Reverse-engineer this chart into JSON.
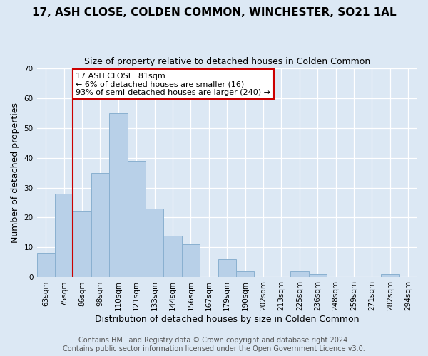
{
  "title": "17, ASH CLOSE, COLDEN COMMON, WINCHESTER, SO21 1AL",
  "subtitle": "Size of property relative to detached houses in Colden Common",
  "xlabel": "Distribution of detached houses by size in Colden Common",
  "ylabel": "Number of detached properties",
  "bin_labels": [
    "63sqm",
    "75sqm",
    "86sqm",
    "98sqm",
    "110sqm",
    "121sqm",
    "133sqm",
    "144sqm",
    "156sqm",
    "167sqm",
    "179sqm",
    "190sqm",
    "202sqm",
    "213sqm",
    "225sqm",
    "236sqm",
    "248sqm",
    "259sqm",
    "271sqm",
    "282sqm",
    "294sqm"
  ],
  "bin_values": [
    8,
    28,
    22,
    35,
    55,
    39,
    23,
    14,
    11,
    0,
    6,
    2,
    0,
    0,
    2,
    1,
    0,
    0,
    0,
    1,
    0
  ],
  "bar_color": "#b8d0e8",
  "bar_edge_color": "#8ab0d0",
  "bar_linewidth": 0.7,
  "vline_color": "#cc0000",
  "vline_x": 1.5,
  "ylim": [
    0,
    70
  ],
  "yticks": [
    0,
    10,
    20,
    30,
    40,
    50,
    60,
    70
  ],
  "annotation_text": "17 ASH CLOSE: 81sqm\n← 6% of detached houses are smaller (16)\n93% of semi-detached houses are larger (240) →",
  "annotation_box_facecolor": "#ffffff",
  "annotation_box_edgecolor": "#cc0000",
  "footer_line1": "Contains HM Land Registry data © Crown copyright and database right 2024.",
  "footer_line2": "Contains public sector information licensed under the Open Government Licence v3.0.",
  "background_color": "#dce8f4",
  "plot_bg_color": "#dce8f4",
  "grid_color": "#ffffff",
  "title_fontsize": 11,
  "subtitle_fontsize": 9,
  "axis_label_fontsize": 9,
  "tick_fontsize": 7.5,
  "footer_fontsize": 7,
  "annotation_fontsize": 8
}
